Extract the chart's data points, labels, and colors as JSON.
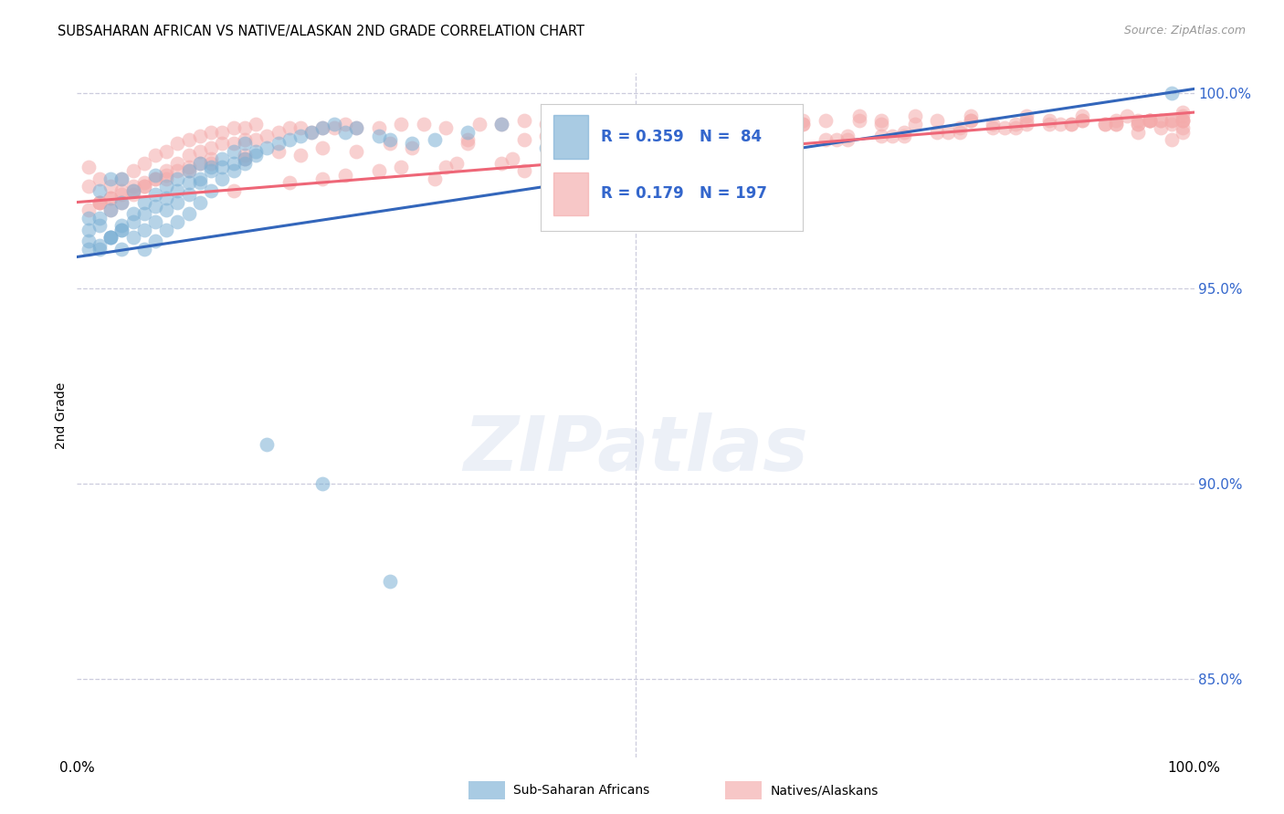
{
  "title": "SUBSAHARAN AFRICAN VS NATIVE/ALASKAN 2ND GRADE CORRELATION CHART",
  "source": "Source: ZipAtlas.com",
  "ylabel": "2nd Grade",
  "xlim": [
    0.0,
    1.0
  ],
  "ylim": [
    0.83,
    1.005
  ],
  "yticks": [
    0.85,
    0.9,
    0.95,
    1.0
  ],
  "ytick_labels": [
    "85.0%",
    "90.0%",
    "95.0%",
    "100.0%"
  ],
  "legend_r1": "R = 0.359",
  "legend_n1": "N =  84",
  "legend_r2": "R = 0.179",
  "legend_n2": "N = 197",
  "blue_color": "#7BAFD4",
  "pink_color": "#F4AAAA",
  "blue_line_color": "#3366BB",
  "pink_line_color": "#EE6677",
  "legend_text_color": "#3366CC",
  "grid_color": "#CCCCDD",
  "background_color": "#FFFFFF",
  "watermark": "ZIPatlas",
  "blue_scatter_x": [
    0.01,
    0.01,
    0.02,
    0.02,
    0.02,
    0.03,
    0.03,
    0.03,
    0.04,
    0.04,
    0.04,
    0.04,
    0.05,
    0.05,
    0.05,
    0.06,
    0.06,
    0.06,
    0.07,
    0.07,
    0.07,
    0.07,
    0.08,
    0.08,
    0.08,
    0.09,
    0.09,
    0.09,
    0.1,
    0.1,
    0.1,
    0.11,
    0.11,
    0.11,
    0.12,
    0.12,
    0.13,
    0.13,
    0.14,
    0.14,
    0.15,
    0.15,
    0.16,
    0.17,
    0.18,
    0.19,
    0.2,
    0.21,
    0.22,
    0.23,
    0.24,
    0.25,
    0.27,
    0.28,
    0.3,
    0.32,
    0.35,
    0.38,
    0.42,
    0.47,
    0.17,
    0.22,
    0.28,
    0.03,
    0.04,
    0.05,
    0.06,
    0.07,
    0.08,
    0.09,
    0.1,
    0.11,
    0.12,
    0.13,
    0.14,
    0.15,
    0.16,
    0.01,
    0.01,
    0.02,
    0.02,
    0.03,
    0.04,
    0.98
  ],
  "blue_scatter_y": [
    0.962,
    0.968,
    0.96,
    0.968,
    0.975,
    0.963,
    0.97,
    0.978,
    0.96,
    0.966,
    0.972,
    0.978,
    0.963,
    0.969,
    0.975,
    0.96,
    0.965,
    0.972,
    0.962,
    0.967,
    0.974,
    0.979,
    0.965,
    0.97,
    0.976,
    0.967,
    0.972,
    0.978,
    0.969,
    0.974,
    0.98,
    0.972,
    0.977,
    0.982,
    0.975,
    0.981,
    0.978,
    0.983,
    0.98,
    0.985,
    0.982,
    0.987,
    0.984,
    0.986,
    0.987,
    0.988,
    0.989,
    0.99,
    0.991,
    0.992,
    0.99,
    0.991,
    0.989,
    0.988,
    0.987,
    0.988,
    0.99,
    0.992,
    0.986,
    0.99,
    0.91,
    0.9,
    0.875,
    0.963,
    0.965,
    0.967,
    0.969,
    0.971,
    0.973,
    0.975,
    0.977,
    0.978,
    0.98,
    0.981,
    0.982,
    0.983,
    0.985,
    0.96,
    0.965,
    0.961,
    0.966,
    0.963,
    0.965,
    1.0
  ],
  "pink_scatter_x": [
    0.01,
    0.01,
    0.02,
    0.02,
    0.03,
    0.03,
    0.04,
    0.04,
    0.05,
    0.05,
    0.06,
    0.06,
    0.07,
    0.07,
    0.08,
    0.08,
    0.09,
    0.09,
    0.1,
    0.1,
    0.11,
    0.11,
    0.12,
    0.12,
    0.13,
    0.13,
    0.14,
    0.14,
    0.15,
    0.15,
    0.16,
    0.16,
    0.17,
    0.18,
    0.19,
    0.2,
    0.21,
    0.22,
    0.23,
    0.24,
    0.25,
    0.27,
    0.29,
    0.31,
    0.33,
    0.36,
    0.38,
    0.4,
    0.42,
    0.44,
    0.47,
    0.5,
    0.52,
    0.55,
    0.57,
    0.6,
    0.62,
    0.65,
    0.67,
    0.7,
    0.72,
    0.75,
    0.77,
    0.8,
    0.82,
    0.85,
    0.87,
    0.9,
    0.92,
    0.95,
    0.97,
    0.98,
    0.99,
    0.99,
    0.02,
    0.03,
    0.04,
    0.05,
    0.06,
    0.07,
    0.08,
    0.09,
    0.1,
    0.11,
    0.12,
    0.15,
    0.18,
    0.22,
    0.28,
    0.35,
    0.42,
    0.5,
    0.58,
    0.65,
    0.72,
    0.8,
    0.85,
    0.9,
    0.94,
    0.96,
    0.98,
    0.01,
    0.02,
    0.03,
    0.04,
    0.05,
    0.06,
    0.08,
    0.1,
    0.12,
    0.15,
    0.2,
    0.25,
    0.3,
    0.35,
    0.4,
    0.45,
    0.5,
    0.55,
    0.6,
    0.65,
    0.7,
    0.75,
    0.8,
    0.85,
    0.9,
    0.95,
    0.98,
    0.55,
    0.6,
    0.32,
    0.4,
    0.45,
    0.5,
    0.57,
    0.62,
    0.67,
    0.72,
    0.77,
    0.82,
    0.87,
    0.92,
    0.95,
    0.97,
    0.99,
    0.22,
    0.27,
    0.33,
    0.38,
    0.44,
    0.49,
    0.54,
    0.59,
    0.64,
    0.69,
    0.74,
    0.79,
    0.84,
    0.89,
    0.93,
    0.96,
    0.99,
    0.14,
    0.19,
    0.24,
    0.29,
    0.34,
    0.39,
    0.44,
    0.49,
    0.54,
    0.59,
    0.64,
    0.69,
    0.74,
    0.79,
    0.84,
    0.89,
    0.93,
    0.96,
    0.99,
    0.62,
    0.68,
    0.73,
    0.78,
    0.83,
    0.88,
    0.93,
    0.96,
    0.99,
    0.95,
    0.97,
    0.98,
    0.99
  ],
  "pink_scatter_y": [
    0.976,
    0.981,
    0.972,
    0.978,
    0.97,
    0.976,
    0.972,
    0.978,
    0.974,
    0.98,
    0.976,
    0.982,
    0.978,
    0.984,
    0.98,
    0.985,
    0.982,
    0.987,
    0.984,
    0.988,
    0.985,
    0.989,
    0.986,
    0.99,
    0.987,
    0.99,
    0.987,
    0.991,
    0.988,
    0.991,
    0.988,
    0.992,
    0.989,
    0.99,
    0.991,
    0.991,
    0.99,
    0.991,
    0.991,
    0.992,
    0.991,
    0.991,
    0.992,
    0.992,
    0.991,
    0.992,
    0.992,
    0.993,
    0.992,
    0.993,
    0.992,
    0.993,
    0.993,
    0.993,
    0.993,
    0.993,
    0.993,
    0.992,
    0.993,
    0.993,
    0.992,
    0.992,
    0.993,
    0.993,
    0.992,
    0.992,
    0.993,
    0.993,
    0.992,
    0.992,
    0.993,
    0.993,
    0.991,
    0.995,
    0.972,
    0.973,
    0.975,
    0.976,
    0.977,
    0.978,
    0.979,
    0.98,
    0.981,
    0.982,
    0.983,
    0.984,
    0.985,
    0.986,
    0.987,
    0.988,
    0.989,
    0.99,
    0.991,
    0.992,
    0.993,
    0.993,
    0.994,
    0.994,
    0.994,
    0.993,
    0.993,
    0.97,
    0.972,
    0.973,
    0.974,
    0.975,
    0.976,
    0.978,
    0.98,
    0.982,
    0.983,
    0.984,
    0.985,
    0.986,
    0.987,
    0.988,
    0.989,
    0.99,
    0.991,
    0.992,
    0.993,
    0.994,
    0.994,
    0.994,
    0.993,
    0.993,
    0.992,
    0.988,
    0.97,
    0.972,
    0.978,
    0.98,
    0.982,
    0.984,
    0.986,
    0.987,
    0.988,
    0.989,
    0.99,
    0.991,
    0.992,
    0.992,
    0.993,
    0.993,
    0.994,
    0.978,
    0.98,
    0.981,
    0.982,
    0.983,
    0.984,
    0.985,
    0.986,
    0.987,
    0.988,
    0.989,
    0.99,
    0.991,
    0.992,
    0.992,
    0.993,
    0.993,
    0.975,
    0.977,
    0.979,
    0.981,
    0.982,
    0.983,
    0.984,
    0.985,
    0.986,
    0.987,
    0.988,
    0.989,
    0.99,
    0.991,
    0.992,
    0.992,
    0.993,
    0.993,
    0.993,
    0.987,
    0.988,
    0.989,
    0.99,
    0.991,
    0.992,
    0.992,
    0.993,
    0.993,
    0.99,
    0.991,
    0.992,
    0.99
  ],
  "blue_trendline_x": [
    0.0,
    1.0
  ],
  "blue_trendline_y_start": 0.958,
  "blue_trendline_y_end": 1.001,
  "pink_trendline_x": [
    0.0,
    1.0
  ],
  "pink_trendline_y_start": 0.972,
  "pink_trendline_y_end": 0.995
}
